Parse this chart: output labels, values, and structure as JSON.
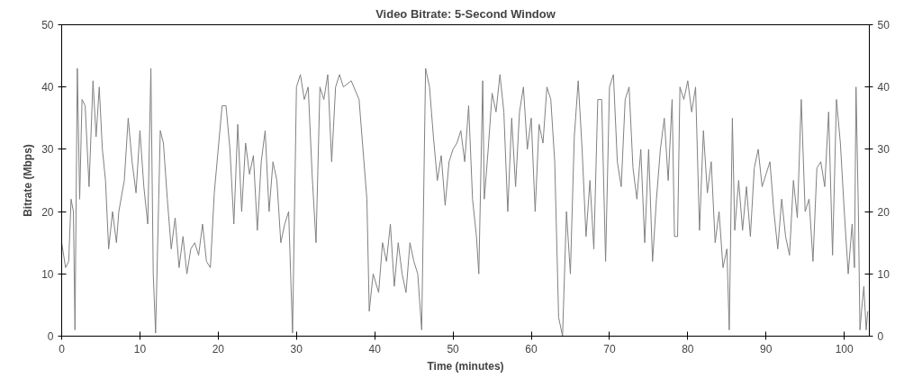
{
  "chart_data": {
    "type": "line",
    "title": "Video Bitrate: 5-Second Window",
    "xlabel": "Time (minutes)",
    "ylabel": "Bitrate (Mbps)",
    "xlim": [
      0,
      103.2
    ],
    "xticks": [
      0,
      10,
      20,
      30,
      40,
      50,
      60,
      70,
      80,
      90,
      100
    ],
    "ylim": [
      0,
      50
    ],
    "yticks": [
      0,
      10,
      20,
      30,
      40,
      50
    ],
    "y2lim": [
      0,
      50
    ],
    "y2ticks": [
      0,
      10,
      20,
      30,
      40,
      50
    ],
    "grid": false,
    "marker": "none",
    "line_style": "solid",
    "series": [
      {
        "color": "#808080",
        "x": [
          0,
          0.5,
          0.9,
          1.2,
          1.5,
          1.7,
          2.0,
          2.3,
          2.6,
          3.0,
          3.5,
          4.0,
          4.4,
          4.8,
          5.2,
          5.6,
          6.0,
          6.5,
          7.0,
          7.3,
          8.0,
          8.5,
          9.0,
          9.5,
          10.0,
          10.5,
          11.0,
          11.4,
          11.7,
          12.0,
          12.4,
          12.6,
          13.0,
          13.5,
          14.0,
          14.5,
          15.0,
          15.5,
          16.0,
          16.5,
          17.0,
          17.5,
          18.0,
          18.5,
          19.0,
          19.5,
          20.0,
          20.5,
          21.0,
          21.5,
          22.0,
          22.5,
          23.0,
          23.5,
          24.0,
          24.5,
          25.0,
          25.5,
          26.0,
          26.5,
          27.0,
          27.5,
          28.0,
          28.5,
          29.0,
          29.5,
          30.0,
          30.5,
          31.0,
          31.5,
          32.0,
          32.5,
          33.0,
          33.5,
          34.0,
          34.5,
          35.0,
          35.5,
          36.0,
          37.0,
          38.0,
          38.5,
          39.0,
          39.3,
          39.8,
          40.5,
          41.0,
          41.5,
          42.0,
          42.5,
          43.0,
          43.5,
          44.0,
          44.5,
          45.0,
          45.5,
          46.0,
          46.5,
          47.0,
          47.5,
          48.0,
          48.5,
          49.0,
          49.5,
          50.0,
          50.5,
          51.0,
          51.5,
          52.0,
          52.5,
          53.0,
          53.3,
          53.8,
          54.0,
          54.5,
          55.0,
          55.5,
          56.0,
          56.5,
          57.0,
          57.5,
          58.0,
          58.5,
          59.0,
          59.5,
          60.0,
          60.5,
          61.0,
          61.5,
          62.0,
          62.5,
          63.0,
          63.5,
          64.0,
          64.5,
          65.0,
          65.5,
          66.0,
          66.5,
          67.0,
          67.5,
          68.0,
          68.5,
          69.0,
          69.5,
          70.0,
          70.5,
          71.0,
          71.5,
          72.0,
          72.5,
          73.0,
          73.5,
          74.0,
          74.5,
          75.0,
          75.5,
          76.0,
          76.5,
          77.0,
          77.5,
          78.0,
          78.3,
          78.7,
          79.0,
          79.5,
          80.0,
          80.5,
          81.0,
          81.5,
          82.0,
          82.5,
          83.0,
          83.5,
          84.0,
          84.5,
          85.0,
          85.3,
          85.7,
          86.0,
          86.5,
          87.0,
          87.5,
          88.0,
          88.5,
          89.0,
          89.5,
          90.0,
          90.5,
          91.0,
          91.5,
          92.0,
          92.5,
          93.0,
          93.5,
          94.0,
          94.5,
          95.0,
          95.5,
          96.0,
          96.5,
          97.0,
          97.5,
          98.0,
          98.5,
          99.0,
          99.5,
          100.0,
          100.5,
          101.0,
          101.3,
          101.5,
          101.8,
          102.0,
          102.2,
          102.5,
          102.8,
          103.0
        ],
        "values": [
          15,
          11,
          12,
          22,
          20,
          1,
          43,
          22,
          38,
          37,
          24,
          41,
          32,
          40,
          30,
          25,
          14,
          20,
          15,
          20,
          25,
          35,
          28,
          23,
          33,
          24,
          18,
          43,
          10,
          0.5,
          22,
          33,
          31,
          22,
          14,
          19,
          11,
          16,
          10,
          14,
          15,
          13,
          18,
          12,
          11,
          23,
          30,
          37,
          37,
          30,
          18,
          34,
          20,
          31,
          26,
          29,
          17,
          28,
          33,
          20,
          28,
          25,
          15,
          18,
          20,
          0.5,
          40,
          42,
          38,
          40,
          26,
          15,
          40,
          38,
          42,
          28,
          40,
          42,
          40,
          41,
          38,
          30,
          22,
          4,
          10,
          7,
          15,
          12,
          18,
          8,
          15,
          10,
          7,
          15,
          12,
          10,
          1,
          43,
          40,
          32,
          25,
          29,
          21,
          28,
          30,
          31,
          33,
          28,
          37,
          22,
          16,
          10,
          41,
          22,
          30,
          39,
          36,
          42,
          36,
          20,
          35,
          24,
          36,
          40,
          30,
          35,
          20,
          34,
          31,
          40,
          38,
          28,
          3,
          0,
          20,
          10,
          32,
          41,
          30,
          16,
          25,
          14,
          38,
          38,
          12,
          40,
          42,
          28,
          24,
          38,
          40,
          27,
          22,
          30,
          15,
          30,
          12,
          22,
          30,
          35,
          25,
          38,
          16,
          16,
          40,
          38,
          41,
          36,
          40,
          17,
          33,
          23,
          28,
          15,
          20,
          11,
          14,
          1,
          35,
          17,
          25,
          17,
          24,
          16,
          27,
          30,
          24,
          26,
          28,
          20,
          14,
          22,
          16,
          13,
          25,
          19,
          38,
          20,
          22,
          12,
          27,
          28,
          24,
          36,
          13,
          38,
          31,
          20,
          10,
          18,
          11,
          40,
          20,
          1,
          4,
          8,
          1,
          4
        ]
      }
    ]
  }
}
